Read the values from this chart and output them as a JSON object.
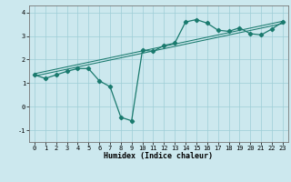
{
  "xlabel": "Humidex (Indice chaleur)",
  "bg_color": "#cce8ee",
  "grid_color": "#9dcdd6",
  "line_color": "#1a7a6e",
  "xlim": [
    -0.5,
    23.5
  ],
  "ylim": [
    -1.5,
    4.3
  ],
  "yticks": [
    -1,
    0,
    1,
    2,
    3,
    4
  ],
  "xticks": [
    0,
    1,
    2,
    3,
    4,
    5,
    6,
    7,
    8,
    9,
    10,
    11,
    12,
    13,
    14,
    15,
    16,
    17,
    18,
    19,
    20,
    21,
    22,
    23
  ],
  "line1_x": [
    0,
    1,
    2,
    3,
    4,
    5,
    6,
    7,
    8,
    9,
    10,
    11,
    12,
    13,
    14,
    15,
    16,
    17,
    18,
    19,
    20,
    21,
    22,
    23
  ],
  "line1_y": [
    1.35,
    1.2,
    1.35,
    1.5,
    1.62,
    1.62,
    1.1,
    0.85,
    -0.45,
    -0.6,
    2.4,
    2.35,
    2.6,
    2.7,
    3.6,
    3.7,
    3.55,
    3.25,
    3.2,
    3.35,
    3.1,
    3.05,
    3.3,
    3.6
  ],
  "line2_x": [
    0,
    23
  ],
  "line2_y": [
    1.35,
    3.58
  ],
  "line3_x": [
    0,
    23
  ],
  "line3_y": [
    1.35,
    3.58
  ],
  "xlabel_fontsize": 6,
  "tick_fontsize": 5,
  "linewidth1": 0.9,
  "linewidth2": 0.75,
  "marker_size": 2.2
}
